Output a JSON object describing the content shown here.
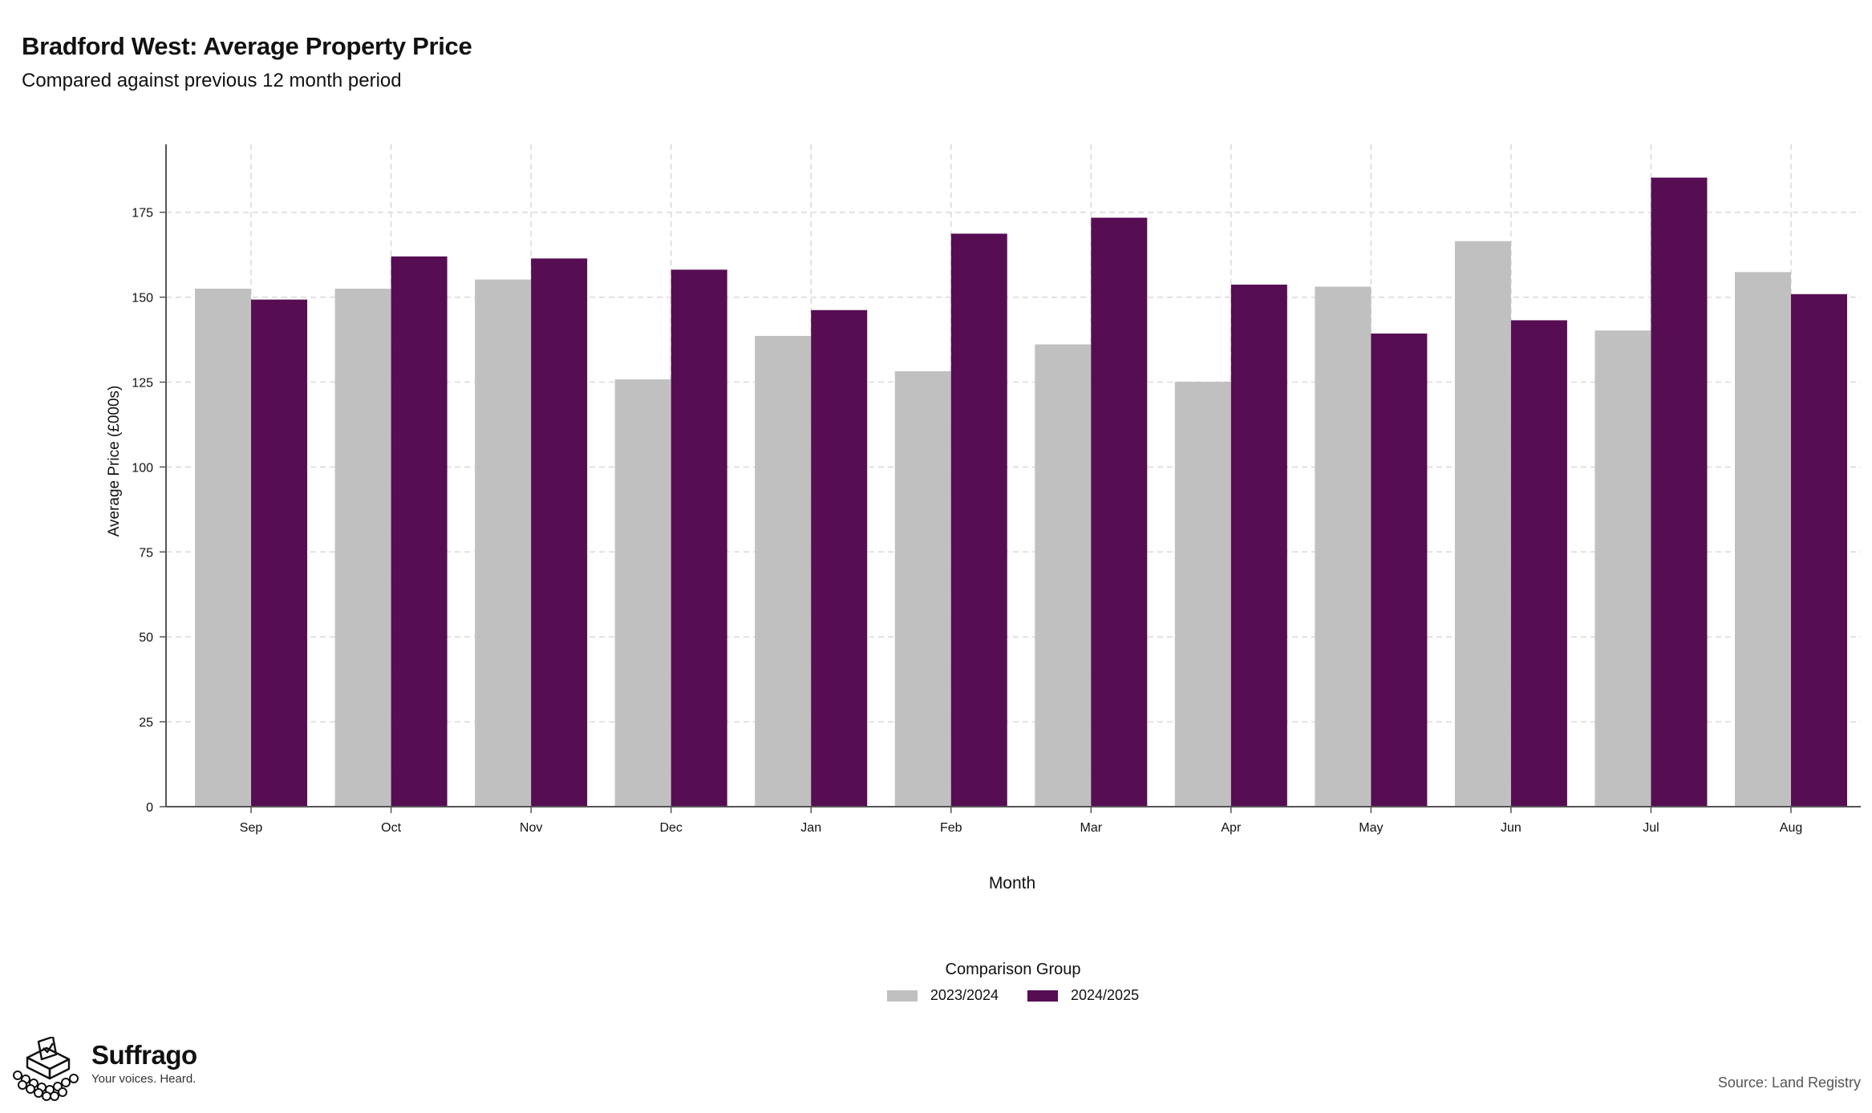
{
  "chart_data": {
    "type": "bar",
    "title": "Bradford West: Average Property Price",
    "subtitle": "Compared against previous 12 month period",
    "xlabel": "Month",
    "ylabel": "Average Price (£000s)",
    "categories": [
      "Sep",
      "Oct",
      "Nov",
      "Dec",
      "Jan",
      "Feb",
      "Mar",
      "Apr",
      "May",
      "Jun",
      "Jul",
      "Aug"
    ],
    "series": [
      {
        "name": "2023/2024",
        "color": "#c0c0c0",
        "values": [
          152.5,
          152.5,
          155.2,
          125.8,
          138.6,
          128.2,
          136.1,
          125.1,
          153.1,
          166.5,
          140.2,
          157.4
        ]
      },
      {
        "name": "2024/2025",
        "color": "#560d52",
        "values": [
          149.3,
          162.0,
          161.4,
          158.1,
          146.2,
          168.7,
          173.4,
          153.7,
          139.3,
          143.2,
          185.2,
          150.9
        ]
      }
    ],
    "ylim": [
      0,
      195
    ],
    "yticks": [
      0,
      25,
      50,
      75,
      100,
      125,
      150,
      175
    ],
    "grid": true,
    "legend_title": "Comparison Group",
    "legend_position": "bottom"
  },
  "footer": {
    "brand": "Suffrago",
    "tagline": "Your voices. Heard.",
    "source": "Source: Land Registry"
  }
}
